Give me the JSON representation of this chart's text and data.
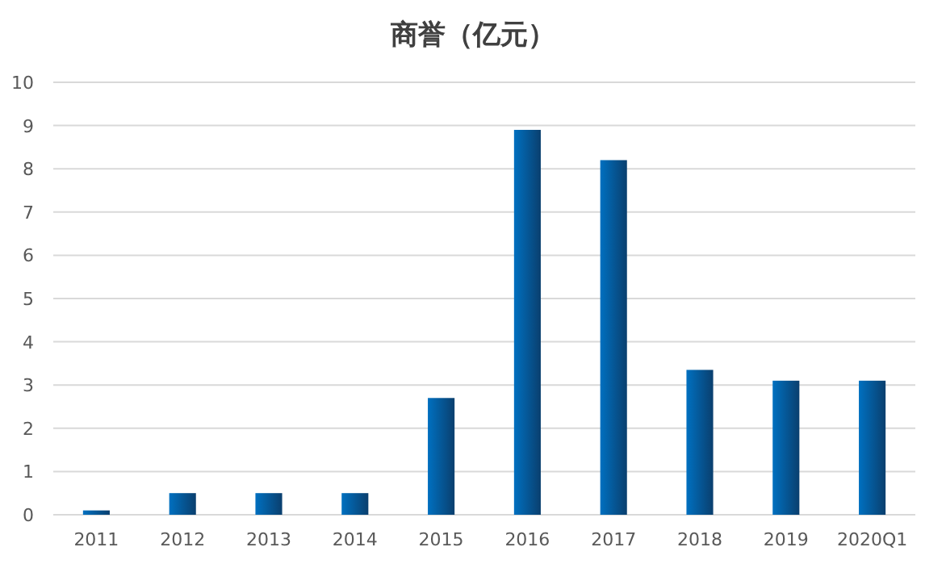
{
  "chart_data": {
    "type": "bar",
    "title": "商誉（亿元）",
    "categories": [
      "2011",
      "2012",
      "2013",
      "2014",
      "2015",
      "2016",
      "2017",
      "2018",
      "2019",
      "2020Q1"
    ],
    "values": [
      0.1,
      0.5,
      0.5,
      0.5,
      2.7,
      8.9,
      8.2,
      3.35,
      3.1,
      3.1
    ],
    "color": "#0070c0",
    "ylim": [
      0,
      10
    ],
    "yticks": [
      0,
      1,
      2,
      3,
      4,
      5,
      6,
      7,
      8,
      9,
      10
    ],
    "grid": "y"
  }
}
